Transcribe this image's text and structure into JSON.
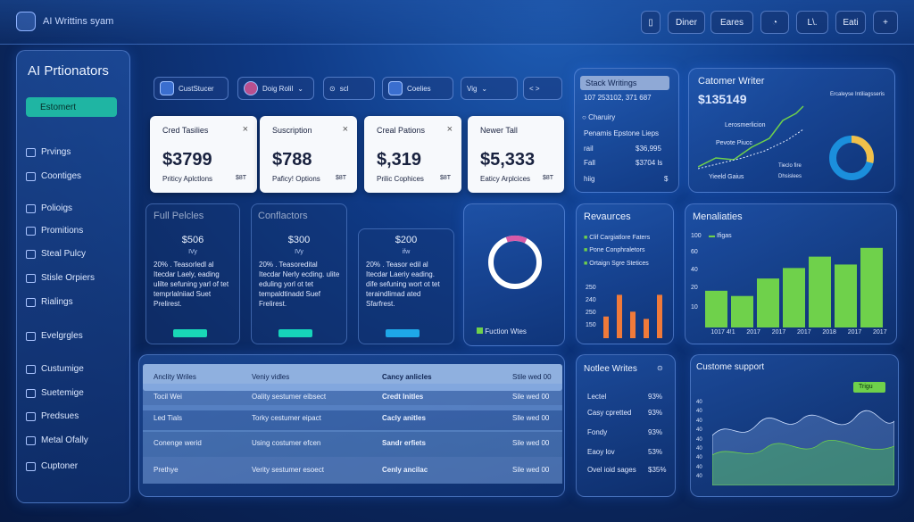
{
  "topbar": {
    "title": "AI Writtins syam",
    "buttons": [
      "Diner",
      "Eares",
      "L\\.",
      "Eati",
      "+"
    ]
  },
  "sidebar": {
    "title": "AI Prtionators",
    "active": "Estomert",
    "items": [
      "Prvings",
      "Coontiges",
      "Polioigs",
      "Promitions",
      "Steal Pulcy",
      "Stisle Orpiers",
      "Rialings",
      "Evelgrgles",
      "Custumige",
      "Suetemige",
      "Predsues",
      "Metal Ofally",
      "Cuptoner"
    ]
  },
  "filters": [
    "CustStucer",
    "Doig Rolil",
    "scl",
    "Coelies",
    "Vig",
    "< >"
  ],
  "cards": [
    {
      "title": "Cred Tasilies",
      "value": "$3799",
      "sub": "Priticy Aplctlons",
      "tag": "$8T"
    },
    {
      "title": "Suscription",
      "value": "$788",
      "sub": "Paficy! Options",
      "tag": "$8T"
    },
    {
      "title": "Creal Pations",
      "value": "$,319",
      "sub": "Prilic Cophices",
      "tag": "$8T"
    },
    {
      "title": "Newer Tall",
      "value": "$5,333",
      "sub": "Eaticy Arplcices",
      "tag": "$8T"
    }
  ],
  "stack": {
    "title": "Stack Writings",
    "number": "107 253102, 371 687",
    "label1": "Charuiry",
    "label2": "Penamis Epstone Lieps",
    "rows": [
      {
        "k": "rail",
        "v": "$36,995"
      },
      {
        "k": "Fall",
        "v": "$3704 ls"
      },
      {
        "k": "hiig",
        "v": "$"
      }
    ]
  },
  "customer": {
    "title": "Catomer Writer",
    "value": "$135149",
    "legend": "Lerosmerlicion",
    "pl": "Pevote Piucc",
    "l2": "Yieeld Gaius",
    "l3": "Tieclo fire",
    "l4": "Dhsislees",
    "side": "Ercaleyse Intiliagsseris"
  },
  "fullpolicies": {
    "title": "Full Pelcles",
    "items": [
      {
        "price": "$506",
        "sub": "IVy",
        "desc": "20% . Teasorledl al Itecdar Laely, eading ulilte sefuning yarl of tet temprlalniiad Suet Prelirest.",
        "color": "#19d7b7"
      },
      {
        "price": "$300",
        "sub": "IVy",
        "desc": "20% . Teasoredital Itecdar Nerly ecding. ulite eduling yorl ot tet tempaldtinadd Suef Frelirest.",
        "color": "#16d4ba"
      },
      {
        "price": "$200",
        "sub": "ifw",
        "desc": "20% . Teasor edil al Itecdar Laeriy eading. dife sefuning wort ot tet teraindlimad ated Sfarfrest.",
        "color": "#1ea7e8"
      }
    ],
    "title2": "Conflactors"
  },
  "donut": {
    "label": "Fuction Wtes"
  },
  "revaurces": {
    "title": "Revaurces",
    "items": [
      "Clif Cargiatlore Faters",
      "Pone Conphraletors",
      "Ortaign Sgre Stetices"
    ],
    "axis": [
      "250",
      "240",
      "250",
      "150"
    ],
    "values": [
      0.45,
      0.9,
      0.55,
      0.4,
      0.9
    ]
  },
  "menaliaties": {
    "title": "Menaliaties",
    "legend": "Ifigas",
    "yaxis": [
      "100",
      "60",
      "40",
      "20",
      "10"
    ],
    "xaxis": [
      "1017 4!1",
      "2017",
      "2017",
      "2017",
      "2018",
      "2017",
      "2017"
    ],
    "values": [
      0.42,
      0.36,
      0.56,
      0.68,
      0.81,
      0.72,
      0.91
    ]
  },
  "table": {
    "rows": [
      [
        "Anclity Wriles",
        "Veniy vidles",
        "Cancy anlicles",
        "Stile wed 00"
      ],
      [
        "Tocil Wei",
        "Oality sestumer eibsect",
        "Credt Initles",
        "Sile wed 00"
      ],
      [
        "Led Tials",
        "Torky cestumer eipact",
        "Cacly anitles",
        "Slle wed 00"
      ],
      [
        "Conenge werid",
        "Using costumer efcen",
        "Sandr erfiets",
        "Sile wed 00"
      ],
      [
        "Prethye",
        "Verity sestumer esoect",
        "Cenly ancilac",
        "Sile wed 00"
      ]
    ]
  },
  "notice": {
    "title": "Notlee Writes",
    "rows": [
      [
        "Lectel",
        "93%"
      ],
      [
        "Casy cpretted",
        "93%"
      ],
      [
        "Fondy",
        "93%"
      ],
      [
        "Eaoy lov",
        "53%"
      ],
      [
        "Ovel ioid sages",
        "$35%"
      ]
    ]
  },
  "support": {
    "title": "Custome support",
    "badge": "Trigu",
    "yaxis": [
      "40",
      "40",
      "40",
      "40",
      "40",
      "40",
      "40",
      "40",
      "40"
    ]
  },
  "colors": {
    "accent": "#1fb5a3",
    "green": "#6fd14b",
    "orange": "#f07a3a",
    "blue": "#1ea7e8",
    "pink": "#d85aa8"
  }
}
